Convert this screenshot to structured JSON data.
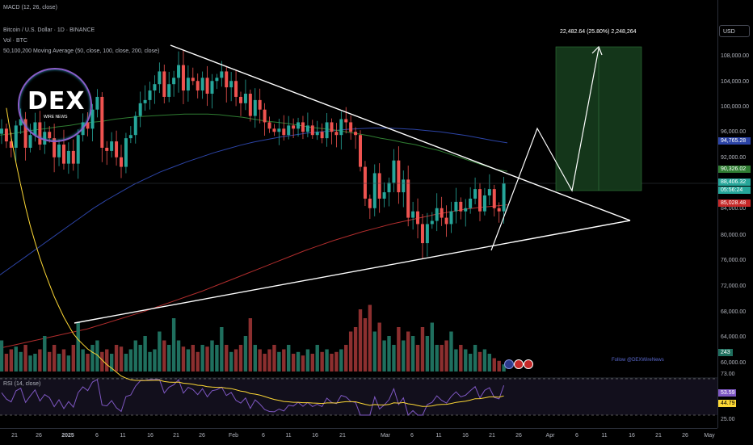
{
  "header": {
    "macd_label": "MACD (12, 26, close)",
    "symbol_label": "Bitcoin / U.S. Dollar · 1D · BINANCE",
    "volume_label": "Vol · BTC",
    "ma_label": "50,100,200 Moving Average (50, close, 100, close, 200, close)"
  },
  "logo": {
    "text": "DEX",
    "sub": "WIRE NEWS"
  },
  "currency_button": "USD",
  "price_ticks": [
    "108,000.00",
    "104,000.00",
    "100,000.00",
    "96,000.00",
    "92,000.00",
    "88,000.00",
    "84,000.00",
    "80,000.00",
    "76,000.00",
    "72,000.00",
    "68,000.00",
    "64,000.00",
    "60,000.00",
    "73.00",
    "25.00"
  ],
  "badges": {
    "ma100": "94,765.28",
    "ma50": "90,326.02",
    "last_price": "88,406.32",
    "countdown": "05:56:24",
    "ma200": "85,028.48",
    "volume": "243",
    "rsi": "53.59",
    "rsi_ma": "44.79"
  },
  "colors": {
    "bull": "#26a69a",
    "bear": "#ef5350",
    "ma50": "#2f7d32",
    "ma100": "#2c44a6",
    "ma200": "#b02d2d",
    "rsi": "#7e57c2",
    "rsi_ma": "#fdd835"
  },
  "time_ticks": [
    "21",
    "26",
    "2025",
    "6",
    "11",
    "16",
    "21",
    "26",
    "Feb",
    "6",
    "11",
    "16",
    "21",
    "Mar",
    "6",
    "11",
    "16",
    "21",
    "26",
    "Apr",
    "6",
    "11",
    "16",
    "21",
    "26",
    "May"
  ],
  "projection_label": "22,482.64 (25.80%) 2,248,264",
  "follow_text": "Follow @DEXWireNews",
  "rsi_label": "RSI (14, close)",
  "chart_data": {
    "type": "candlestick",
    "title": "Bitcoin / U.S. Dollar · 1D · BINANCE",
    "ylim": [
      58000,
      110000
    ],
    "close": [
      97000,
      95000,
      94000,
      97500,
      98500,
      94000,
      96000,
      98000,
      94500,
      96500,
      95500,
      92500,
      94500,
      91500,
      93500,
      91500,
      96000,
      98000,
      97000,
      100000,
      102000,
      94000,
      93500,
      95000,
      92500,
      91000,
      95500,
      96000,
      99000,
      101000,
      101500,
      103000,
      104000,
      106000,
      102000,
      104000,
      105000,
      107000,
      103000,
      105000,
      104500,
      103000,
      105000,
      102500,
      104500,
      105000,
      106000,
      103500,
      104500,
      102000,
      101000,
      102500,
      99000,
      101500,
      100000,
      98000,
      97000,
      96500,
      97000,
      96000,
      97500,
      97000,
      98000,
      96500,
      97500,
      96000,
      96500,
      95500,
      98000,
      96500,
      96000,
      98500,
      98000,
      96500,
      96000,
      91000,
      86000,
      84500,
      90000,
      86000,
      87000,
      88500,
      92000,
      87000,
      89000,
      83000,
      84000,
      82000,
      79000,
      82000,
      82500,
      84500,
      83000,
      82000,
      84000,
      85500,
      84000,
      84500,
      86000,
      87500,
      84000,
      86500,
      87500,
      84500,
      84000,
      88400
    ],
    "volume": [
      0.35,
      0.2,
      0.25,
      0.28,
      0.22,
      0.3,
      0.18,
      0.2,
      0.25,
      0.4,
      0.22,
      0.3,
      0.2,
      0.25,
      0.18,
      0.3,
      0.55,
      0.25,
      0.2,
      0.3,
      0.35,
      0.22,
      0.25,
      0.2,
      0.3,
      0.28,
      0.2,
      0.25,
      0.35,
      0.3,
      0.4,
      0.22,
      0.25,
      0.45,
      0.35,
      0.3,
      0.6,
      0.35,
      0.28,
      0.25,
      0.3,
      0.22,
      0.3,
      0.28,
      0.35,
      0.3,
      0.5,
      0.3,
      0.22,
      0.25,
      0.3,
      0.4,
      0.6,
      0.3,
      0.25,
      0.2,
      0.25,
      0.3,
      0.22,
      0.25,
      0.3,
      0.2,
      0.22,
      0.18,
      0.25,
      0.2,
      0.3,
      0.22,
      0.25,
      0.2,
      0.22,
      0.25,
      0.3,
      0.45,
      0.5,
      0.7,
      0.6,
      0.75,
      0.45,
      0.55,
      0.35,
      0.4,
      0.3,
      0.5,
      0.35,
      0.45,
      0.4,
      0.3,
      0.5,
      0.4,
      0.55,
      0.3,
      0.3,
      0.35,
      0.45,
      0.25,
      0.3,
      0.25,
      0.2,
      0.3,
      0.22,
      0.25,
      0.2,
      0.15,
      0.12,
      0.08
    ],
    "ma50": [
      96000,
      96200,
      96500,
      96800,
      97000,
      97300,
      97500,
      97800,
      98000,
      98200,
      98500,
      98700,
      98900,
      99000,
      99100,
      99200,
      99300,
      99300,
      99300,
      99200,
      99000,
      98800,
      98500,
      98200,
      98000,
      97800,
      97500,
      97200,
      97000,
      96800,
      96500,
      96200,
      95900,
      95500,
      95200,
      94800,
      94500,
      94000,
      93600,
      93000,
      92400,
      91800,
      91200,
      90600,
      90300
    ],
    "ma100": [
      74000,
      75500,
      77000,
      78500,
      80000,
      81500,
      83000,
      84500,
      85800,
      87000,
      88200,
      89200,
      90200,
      91000,
      91800,
      92500,
      93200,
      93800,
      94400,
      94900,
      95300,
      95700,
      96000,
      96300,
      96500,
      96700,
      96900,
      97000,
      97100,
      97100,
      97000,
      96900,
      96700,
      96500,
      96200,
      95900,
      95500,
      95100,
      94765
    ],
    "ma200": [
      62500,
      63000,
      63500,
      64000,
      64500,
      65000,
      65500,
      66200,
      66900,
      67600,
      68300,
      69100,
      69900,
      70700,
      71500,
      72400,
      73300,
      74200,
      75100,
      76000,
      76900,
      77800,
      78600,
      79400,
      80100,
      80800,
      81400,
      82000,
      82500,
      83000,
      83500,
      83900,
      84300,
      84600,
      84800,
      85028
    ]
  }
}
